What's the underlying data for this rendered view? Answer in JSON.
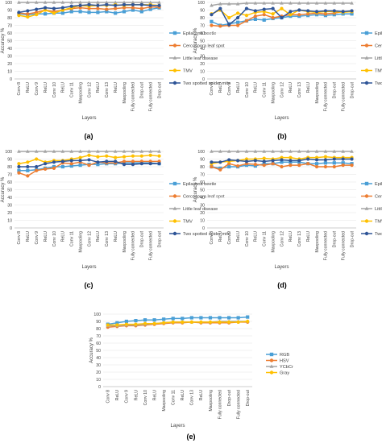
{
  "chart_data": [
    {
      "id": "a",
      "type": "line",
      "caption": "(a)",
      "xlabel": "Layers",
      "ylabel": "Accuracy %",
      "ylim": [
        0,
        100
      ],
      "yticks": [
        0,
        10,
        20,
        30,
        40,
        50,
        60,
        70,
        80,
        90,
        100
      ],
      "legend_position": "right",
      "categories": [
        "Conv 8",
        "ReLU",
        "Conv 9",
        "ReLU",
        "Conv 10",
        "ReLU",
        "Conv 11",
        "Maxpooling",
        "Conv 12",
        "ReLU",
        "Conv 13",
        "ReLU",
        "Maxpooling",
        "Fully connected",
        "Drop-out",
        "Fully connected",
        "Drop-out"
      ],
      "series": [
        {
          "name": "Epilachna beetle",
          "color": "#4a9fd6",
          "marker": "square",
          "values": [
            85,
            84,
            85,
            85,
            86,
            86,
            88,
            88,
            87,
            87,
            88,
            86,
            88,
            90,
            88,
            91,
            93
          ]
        },
        {
          "name": "Cercospora leaf spot",
          "color": "#ed7d31",
          "marker": "circle",
          "values": [
            86,
            85,
            87,
            90,
            88,
            90,
            92,
            93,
            92,
            92,
            91,
            92,
            93,
            93,
            92,
            94,
            94
          ]
        },
        {
          "name": "Little leaf disease",
          "color": "#a5a5a5",
          "marker": "triangle",
          "values": [
            100,
            100,
            100,
            100,
            100,
            100,
            100,
            100,
            100,
            100,
            100,
            100,
            100,
            100,
            100,
            100,
            100
          ]
        },
        {
          "name": "TMV",
          "color": "#ffc000",
          "marker": "circle",
          "values": [
            83,
            81,
            84,
            90,
            86,
            90,
            93,
            96,
            95,
            96,
            96,
            97,
            96,
            97,
            97,
            97,
            96
          ]
        },
        {
          "name": "Two spotted spider mite",
          "color": "#2f5597",
          "marker": "circle",
          "values": [
            87,
            89,
            91,
            93,
            92,
            93,
            95,
            96,
            97,
            96,
            97,
            96,
            97,
            97,
            97,
            96,
            96
          ]
        }
      ]
    },
    {
      "id": "b",
      "type": "line",
      "caption": "(b)",
      "xlabel": "Layers",
      "ylabel": "Accuracy %",
      "ylim": [
        0,
        100
      ],
      "yticks": [
        0,
        10,
        20,
        30,
        40,
        50,
        60,
        70,
        80,
        90,
        100
      ],
      "legend_position": "right",
      "categories": [
        "Conv 8",
        "ReLU",
        "Conv 9",
        "ReLU",
        "Conv 10",
        "ReLU",
        "Conv 11",
        "Maxpooling",
        "Conv 12",
        "ReLU",
        "Conv 13",
        "ReLU",
        "Maxpooling",
        "Fully connected",
        "Drop-out",
        "Fully connected",
        "Drop-out"
      ],
      "series": [
        {
          "name": "Epilachna beetle",
          "color": "#4a9fd6",
          "marker": "square",
          "values": [
            75,
            70,
            72,
            74,
            76,
            78,
            77,
            79,
            80,
            82,
            82,
            83,
            84,
            83,
            84,
            85,
            85
          ]
        },
        {
          "name": "Cercospora leaf spot",
          "color": "#ed7d31",
          "marker": "circle",
          "values": [
            70,
            69,
            70,
            70,
            76,
            82,
            84,
            80,
            82,
            84,
            84,
            85,
            86,
            85,
            86,
            88,
            88
          ]
        },
        {
          "name": "Little leaf disease",
          "color": "#a5a5a5",
          "marker": "triangle",
          "values": [
            96,
            98,
            98,
            98,
            99,
            99,
            99,
            99,
            99,
            99,
            99,
            99,
            99,
            99,
            99,
            99,
            99
          ]
        },
        {
          "name": "TMV",
          "color": "#ffc000",
          "marker": "circle",
          "values": [
            85,
            90,
            80,
            86,
            83,
            87,
            88,
            85,
            92,
            84,
            90,
            88,
            87,
            88,
            88,
            87,
            88
          ]
        },
        {
          "name": "Two spotted spider mite",
          "color": "#2f5597",
          "marker": "circle",
          "values": [
            84,
            92,
            71,
            80,
            92,
            89,
            91,
            92,
            80,
            88,
            90,
            89,
            88,
            89,
            89,
            88,
            89
          ]
        }
      ]
    },
    {
      "id": "c",
      "type": "line",
      "caption": "(c)",
      "xlabel": "Layers",
      "ylabel": "Accuracy %",
      "ylim": [
        0,
        100
      ],
      "yticks": [
        0,
        10,
        20,
        30,
        40,
        50,
        60,
        70,
        80,
        90,
        100
      ],
      "legend_position": "right",
      "categories": [
        "Conv 8",
        "ReLU",
        "Conv 9",
        "ReLU",
        "Conv 10",
        "ReLU",
        "Conv 11",
        "Maxpooling",
        "Conv 12",
        "ReLU",
        "Conv 13",
        "ReLU",
        "Maxpooling",
        "Fully connected",
        "Drop-out",
        "Fully connected",
        "Drop-out"
      ],
      "series": [
        {
          "name": "Epilachna beetle",
          "color": "#4a9fd6",
          "marker": "square",
          "values": [
            75,
            75,
            76,
            78,
            80,
            80,
            81,
            82,
            83,
            83,
            84,
            84,
            85,
            85,
            85,
            85,
            84
          ]
        },
        {
          "name": "Cercospora leaf spot",
          "color": "#ed7d31",
          "marker": "circle",
          "values": [
            72,
            68,
            75,
            77,
            78,
            85,
            84,
            86,
            82,
            86,
            85,
            85,
            87,
            87,
            87,
            87,
            87
          ]
        },
        {
          "name": "Little leaf disease",
          "color": "#a5a5a5",
          "marker": "triangle",
          "values": [
            100,
            100,
            100,
            100,
            100,
            100,
            100,
            100,
            100,
            100,
            100,
            100,
            100,
            100,
            100,
            100,
            100
          ]
        },
        {
          "name": "TMV",
          "color": "#ffc000",
          "marker": "circle",
          "values": [
            84,
            86,
            90,
            86,
            88,
            88,
            90,
            92,
            95,
            93,
            94,
            92,
            93,
            94,
            94,
            95,
            94
          ]
        },
        {
          "name": "Two spotted spider mite",
          "color": "#2f5597",
          "marker": "circle",
          "values": [
            80,
            80,
            80,
            84,
            86,
            87,
            88,
            88,
            89,
            86,
            87,
            87,
            83,
            83,
            84,
            84,
            84
          ]
        }
      ]
    },
    {
      "id": "d",
      "type": "line",
      "caption": "(d)",
      "xlabel": "Layers",
      "ylabel": "Accuracy %",
      "ylim": [
        0,
        100
      ],
      "yticks": [
        0,
        10,
        20,
        30,
        40,
        50,
        60,
        70,
        80,
        90,
        100
      ],
      "legend_position": "right",
      "categories": [
        "Conv 8",
        "ReLU",
        "Conv 9",
        "ReLU",
        "Conv 10",
        "ReLU",
        "Conv 11",
        "Maxpooling",
        "Conv 12",
        "ReLU",
        "Conv 13",
        "ReLU",
        "Maxpooling",
        "Fully connected",
        "Drop-out",
        "Fully connected",
        "Drop-out"
      ],
      "series": [
        {
          "name": "Epilachna beetle",
          "color": "#4a9fd6",
          "marker": "square",
          "values": [
            80,
            78,
            80,
            80,
            82,
            81,
            84,
            84,
            86,
            86,
            86,
            84,
            84,
            85,
            85,
            85,
            84
          ]
        },
        {
          "name": "Cercospora leaf spot",
          "color": "#ed7d31",
          "marker": "circle",
          "values": [
            80,
            76,
            84,
            81,
            84,
            83,
            82,
            84,
            80,
            82,
            82,
            84,
            80,
            80,
            80,
            82,
            82
          ]
        },
        {
          "name": "Little leaf disease",
          "color": "#a5a5a5",
          "marker": "triangle",
          "values": [
            100,
            100,
            100,
            100,
            100,
            100,
            100,
            100,
            100,
            100,
            100,
            100,
            100,
            100,
            100,
            100,
            100
          ]
        },
        {
          "name": "TMV",
          "color": "#ffc000",
          "marker": "circle",
          "values": [
            84,
            86,
            87,
            88,
            90,
            90,
            91,
            90,
            92,
            92,
            90,
            92,
            92,
            93,
            92,
            92,
            92
          ]
        },
        {
          "name": "Two spotted spider mite",
          "color": "#2f5597",
          "marker": "circle",
          "values": [
            86,
            86,
            89,
            88,
            87,
            88,
            87,
            88,
            89,
            88,
            88,
            90,
            89,
            89,
            90,
            90,
            90
          ]
        }
      ]
    },
    {
      "id": "e",
      "type": "line",
      "caption": "(e)",
      "xlabel": "Layers",
      "ylabel": "Accuracy %",
      "ylim": [
        0,
        100
      ],
      "yticks": [
        0,
        10,
        20,
        30,
        40,
        50,
        60,
        70,
        80,
        90,
        100
      ],
      "legend_position": "right",
      "categories": [
        "Conv 8",
        "ReLU",
        "Conv 9",
        "ReLU",
        "Conv 10",
        "ReLU",
        "Maxpooling",
        "Conv 11",
        "ReLU",
        "Conv 13",
        "ReLU",
        "Maxpooling",
        "Fully connected",
        "Drop-out",
        "Fully connected",
        "Drop-out"
      ],
      "series": [
        {
          "name": "RGB",
          "color": "#4a9fd6",
          "marker": "square",
          "values": [
            86,
            88,
            90,
            91,
            92,
            92,
            93,
            94,
            94,
            95,
            95,
            95,
            95,
            95,
            95,
            96
          ]
        },
        {
          "name": "HSV",
          "color": "#ed7d31",
          "marker": "circle",
          "values": [
            82,
            83,
            84,
            84,
            85,
            86,
            87,
            88,
            88,
            89,
            88,
            88,
            88,
            88,
            89,
            89
          ]
        },
        {
          "name": "YCbCr",
          "color": "#a5a5a5",
          "marker": "triangle",
          "values": [
            84,
            84,
            85,
            85,
            86,
            87,
            88,
            89,
            89,
            89,
            89,
            89,
            90,
            90,
            90,
            90
          ]
        },
        {
          "name": "Gray",
          "color": "#ffc000",
          "marker": "circle",
          "values": [
            85,
            85,
            86,
            86,
            87,
            87,
            88,
            89,
            89,
            89,
            89,
            89,
            89,
            89,
            89,
            90
          ]
        }
      ]
    }
  ]
}
